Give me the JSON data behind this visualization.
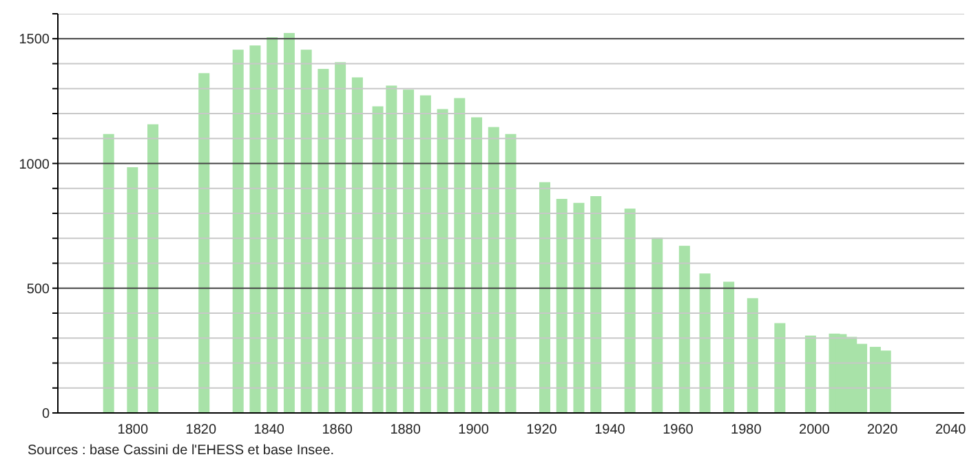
{
  "chart_data": {
    "type": "bar",
    "annotations": [
      "Sources : base Cassini de l'EHESS et base Insee."
    ],
    "x": [
      1793,
      1800,
      1806,
      1821,
      1831,
      1836,
      1841,
      1846,
      1851,
      1856,
      1861,
      1866,
      1872,
      1876,
      1881,
      1886,
      1891,
      1896,
      1901,
      1906,
      1911,
      1921,
      1926,
      1931,
      1936,
      1946,
      1954,
      1962,
      1968,
      1975,
      1982,
      1990,
      1999,
      2006,
      2008,
      2011,
      2014,
      2018,
      2021
    ],
    "values": [
      1118,
      985,
      1157,
      1362,
      1456,
      1473,
      1506,
      1523,
      1456,
      1379,
      1406,
      1345,
      1229,
      1312,
      1296,
      1273,
      1218,
      1262,
      1185,
      1146,
      1118,
      925,
      858,
      842,
      869,
      819,
      703,
      670,
      559,
      526,
      460,
      360,
      310,
      318,
      316,
      305,
      277,
      265,
      250
    ],
    "color": "#a8e2a8",
    "xlim": [
      1778,
      2044
    ],
    "xticks": [
      1800,
      1820,
      1840,
      1860,
      1880,
      1900,
      1920,
      1940,
      1960,
      1980,
      2000,
      2020,
      2040
    ],
    "ylim": [
      0,
      1600
    ],
    "yticks": [
      0,
      {
        "value": 100,
        "label": null
      },
      {
        "value": 200,
        "label": null
      },
      {
        "value": 300,
        "label": null
      },
      {
        "value": 400,
        "label": null
      },
      500,
      {
        "value": 600,
        "label": null
      },
      {
        "value": 700,
        "label": null
      },
      {
        "value": 800,
        "label": null
      },
      {
        "value": 900,
        "label": null
      },
      1000,
      {
        "value": 1100,
        "label": null
      },
      {
        "value": 1200,
        "label": null
      },
      {
        "value": 1300,
        "label": null
      },
      {
        "value": 1400,
        "label": null
      },
      1500,
      {
        "value": 1600,
        "label": null
      }
    ],
    "grid": "y"
  }
}
